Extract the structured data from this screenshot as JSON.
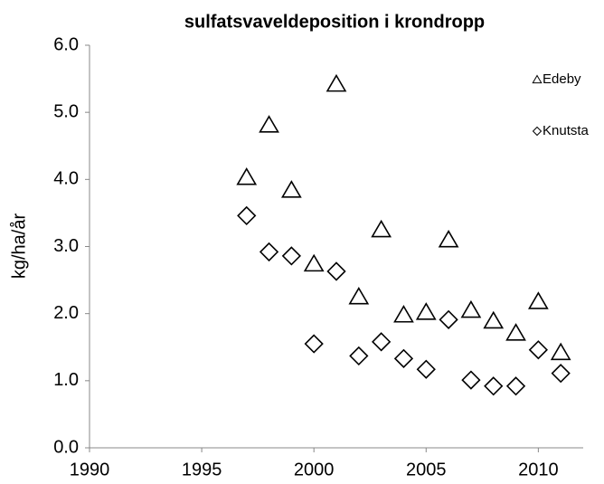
{
  "chart_data": {
    "type": "scatter",
    "title": "sulfatsvaveldeposition i krondropp",
    "y_label": "kg/ha/år",
    "x": [
      1997,
      1998,
      1999,
      2000,
      2001,
      2002,
      2003,
      2004,
      2005,
      2006,
      2007,
      2008,
      2009,
      2010,
      2011
    ],
    "series": [
      {
        "name": "Edeby",
        "color": "#000000",
        "marker": "triangle",
        "values": [
          4.03,
          4.81,
          3.84,
          2.74,
          5.42,
          2.25,
          3.25,
          1.98,
          2.02,
          3.1,
          2.05,
          1.89,
          1.71,
          2.18,
          1.42
        ]
      },
      {
        "name": "Knutsta",
        "color": "#000000",
        "marker": "diamond",
        "values": [
          3.46,
          2.92,
          2.86,
          1.55,
          2.63,
          1.37,
          1.58,
          1.33,
          1.17,
          1.91,
          1.01,
          0.92,
          0.92,
          1.46,
          1.11
        ]
      }
    ],
    "xlim": [
      1990,
      2012
    ],
    "xticks": [
      1990,
      1995,
      2000,
      2005,
      2010
    ],
    "ylim": [
      0,
      6
    ],
    "yticks": [
      {
        "value": 0,
        "label": "0.0"
      },
      {
        "value": 1,
        "label": "1.0"
      },
      {
        "value": 2,
        "label": "2.0"
      },
      {
        "value": 3,
        "label": "3.0"
      },
      {
        "value": 4,
        "label": "4.0"
      },
      {
        "value": 5,
        "label": "5.0"
      },
      {
        "value": 6,
        "label": "6.0"
      }
    ],
    "grid": false,
    "legend_position": "top-right"
  }
}
